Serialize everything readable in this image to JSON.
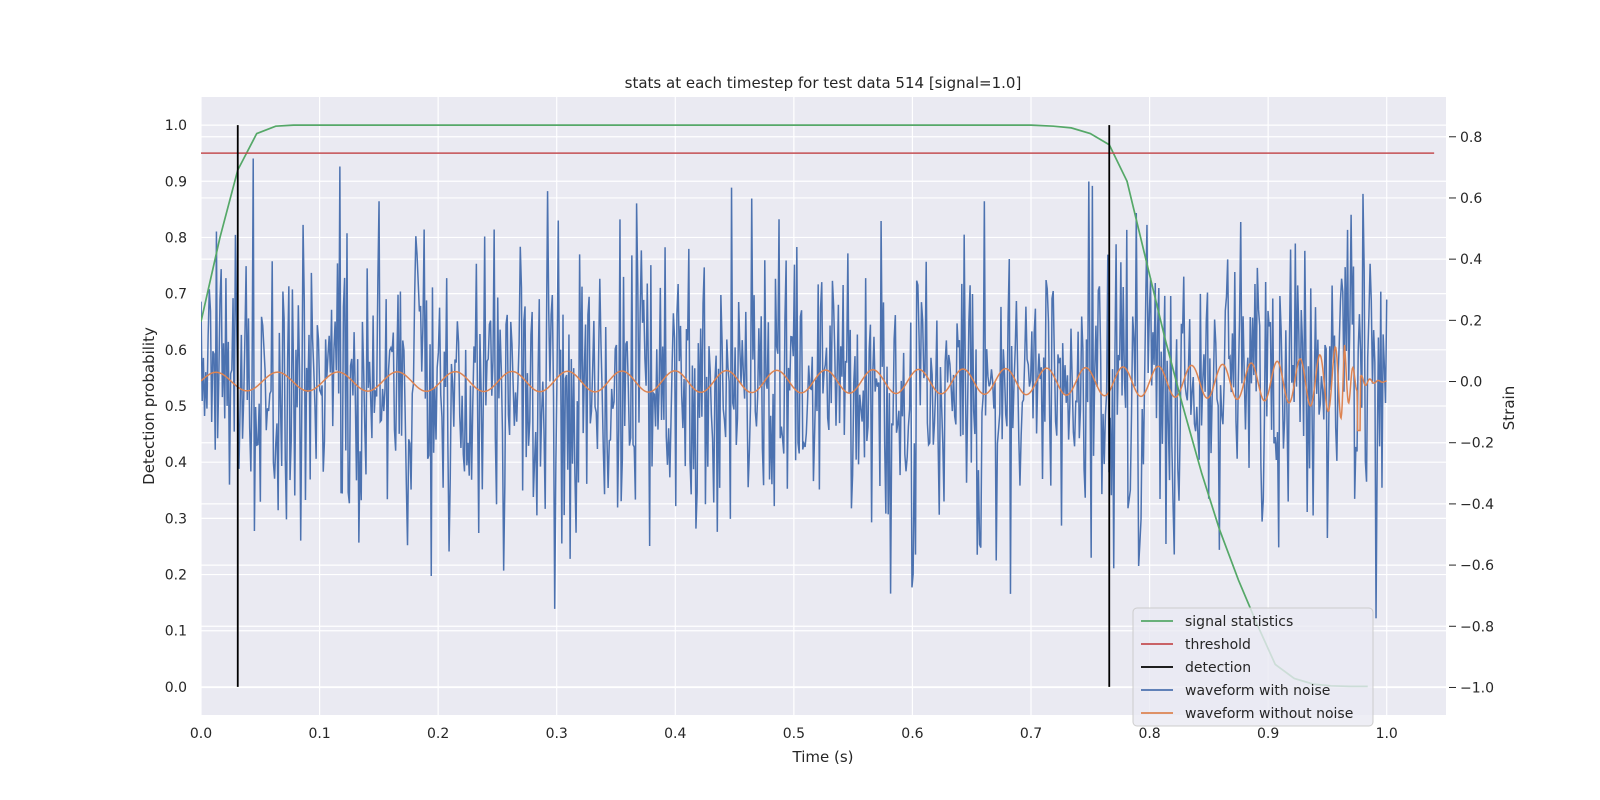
{
  "chart_data": {
    "type": "line",
    "title": "stats at each timestep for test data 514 [signal=1.0]",
    "xlabel": "Time (s)",
    "ylabel": "Detection probability",
    "ylabel_right": "Strain",
    "xlim": [
      0.0,
      1.05
    ],
    "ylim": [
      -0.05,
      1.05
    ],
    "ylim_right": [
      -1.09,
      0.93
    ],
    "xticks": [
      0.0,
      0.1,
      0.2,
      0.3,
      0.4,
      0.5,
      0.6,
      0.7,
      0.8,
      0.9,
      1.0
    ],
    "yticks": [
      0.0,
      0.1,
      0.2,
      0.3,
      0.4,
      0.5,
      0.6,
      0.7,
      0.8,
      0.9,
      1.0
    ],
    "yticks_right": [
      -1.0,
      -0.8,
      -0.6,
      -0.4,
      -0.2,
      0.0,
      0.2,
      0.4,
      0.6,
      0.8
    ],
    "xtick_labels": [
      "0.0",
      "0.1",
      "0.2",
      "0.3",
      "0.4",
      "0.5",
      "0.6",
      "0.7",
      "0.8",
      "0.9",
      "1.0"
    ],
    "ytick_labels": [
      "0.0",
      "0.1",
      "0.2",
      "0.3",
      "0.4",
      "0.5",
      "0.6",
      "0.7",
      "0.8",
      "0.9",
      "1.0"
    ],
    "ytick_labels_right": [
      "−1.0",
      "−0.8",
      "−0.6",
      "−0.4",
      "−0.2",
      "0.0",
      "0.2",
      "0.4",
      "0.6",
      "0.8"
    ],
    "grid": true,
    "legend_position": "bottom-right",
    "series": [
      {
        "name": "signal statistics",
        "color": "#55a868",
        "axis": "left",
        "x": [
          0.0,
          0.016,
          0.031,
          0.047,
          0.063,
          0.078,
          0.094,
          0.109,
          0.125,
          0.25,
          0.5,
          0.7,
          0.719,
          0.734,
          0.75,
          0.766,
          0.781,
          0.797,
          0.813,
          0.828,
          0.844,
          0.859,
          0.875,
          0.891,
          0.906,
          0.922,
          0.938,
          0.953,
          0.969,
          0.984
        ],
        "y": [
          0.65,
          0.8,
          0.92,
          0.985,
          0.998,
          1.0,
          1.0,
          1.0,
          1.0,
          1.0,
          1.0,
          1.0,
          0.998,
          0.995,
          0.985,
          0.965,
          0.9,
          0.76,
          0.62,
          0.5,
          0.38,
          0.28,
          0.19,
          0.11,
          0.04,
          0.015,
          0.005,
          0.002,
          0.001,
          0.001
        ]
      },
      {
        "name": "threshold",
        "color": "#c44e52",
        "axis": "left",
        "x": [
          0.0,
          1.04
        ],
        "y": [
          0.95,
          0.95
        ]
      },
      {
        "name": "detection",
        "color": "#000000",
        "axis": "left",
        "segments": [
          {
            "x": 0.031,
            "y": [
              0.0,
              1.0
            ]
          },
          {
            "x": 0.766,
            "y": [
              0.0,
              1.0
            ]
          }
        ]
      },
      {
        "name": "waveform with noise",
        "color": "#4c72b0",
        "axis": "right",
        "n_points": 1000,
        "y_std": 0.25
      },
      {
        "name": "waveform without noise",
        "color": "#dd8452",
        "axis": "right"
      }
    ]
  }
}
